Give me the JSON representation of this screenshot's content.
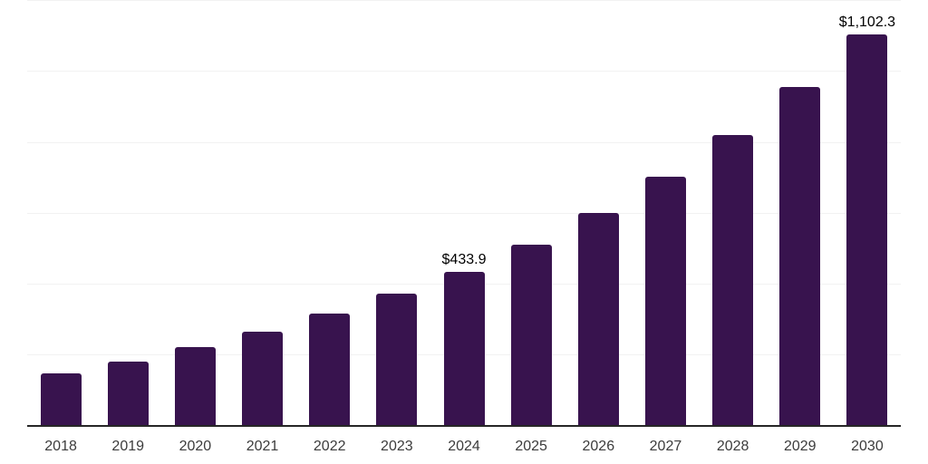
{
  "chart_data": {
    "type": "bar",
    "title": "",
    "xlabel": "",
    "ylabel": "",
    "categories": [
      "2018",
      "2019",
      "2020",
      "2021",
      "2022",
      "2023",
      "2024",
      "2025",
      "2026",
      "2027",
      "2028",
      "2029",
      "2030"
    ],
    "values": [
      147.6,
      180.2,
      220.3,
      265.0,
      315.3,
      371.0,
      433.9,
      510.4,
      599.5,
      702.2,
      818.5,
      955.6,
      1102.3
    ],
    "value_labels": [
      "",
      "",
      "",
      "",
      "",
      "",
      "$433.9",
      "",
      "",
      "",
      "",
      "",
      "$1,102.3"
    ],
    "ylim": [
      0,
      1200
    ],
    "grid": "horizontal",
    "grid_interval": 200,
    "legend": "none",
    "colors": {
      "bar": "#38134E",
      "axis": "#262626",
      "gridline": "#F2F2F2",
      "tick_label": "#3C3C3C",
      "value_label": "#000000",
      "background": "#FFFFFF"
    }
  }
}
